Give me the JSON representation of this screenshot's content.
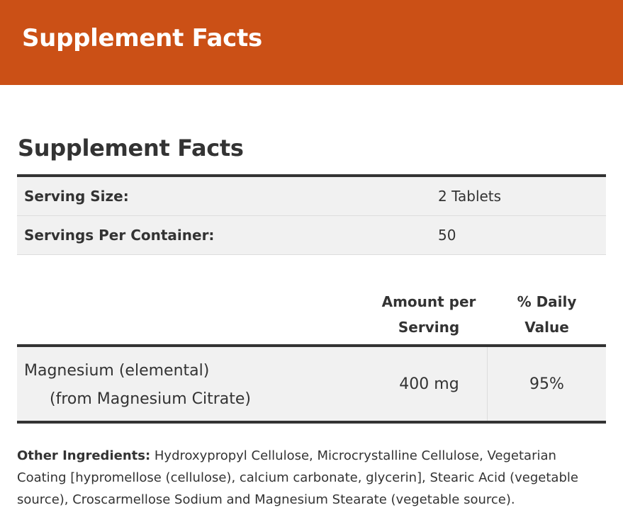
{
  "banner": {
    "title": "Supplement Facts"
  },
  "facts": {
    "title": "Supplement Facts",
    "serving": [
      {
        "label": "Serving Size:",
        "value": "2 Tablets"
      },
      {
        "label": "Servings Per Container:",
        "value": "50"
      }
    ],
    "headers": {
      "amount_line1": "Amount per",
      "amount_line2": "Serving",
      "dv_line1": "% Daily",
      "dv_line2": "Value"
    },
    "nutrients": [
      {
        "name": "Magnesium (elemental)",
        "source": "(from Magnesium Citrate)",
        "amount": "400 mg",
        "dv": "95%"
      }
    ]
  },
  "other_ingredients": {
    "label": "Other Ingredients:",
    "text": "Hydroxypropyl Cellulose, Microcrystalline Cellulose, Vegetarian Coating [hypromellose (cellulose), calcium carbonate, glycerin], Stearic Acid (vegetable source), Croscarmellose Sodium and Magnesium Stearate (vegetable source)."
  },
  "colors": {
    "banner": "#cb5016",
    "text": "#333333",
    "row_bg": "#f1f1f1"
  }
}
